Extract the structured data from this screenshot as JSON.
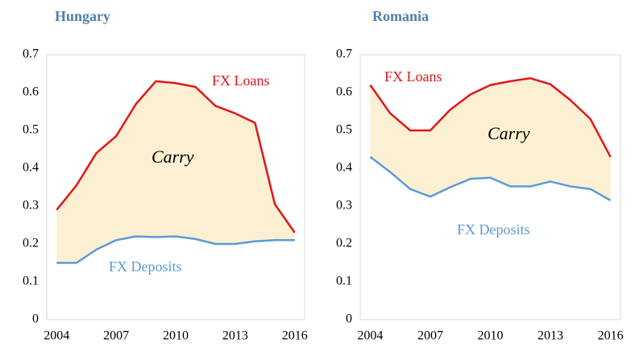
{
  "chart_data": [
    {
      "type": "line",
      "title": "Hungary",
      "x": [
        2004,
        2005,
        2006,
        2007,
        2008,
        2009,
        2010,
        2011,
        2012,
        2013,
        2014,
        2015,
        2016
      ],
      "series": [
        {
          "name": "FX Loans",
          "color": "#e3151a",
          "values": [
            0.29,
            0.355,
            0.44,
            0.485,
            0.57,
            0.63,
            0.625,
            0.615,
            0.565,
            0.545,
            0.52,
            0.305,
            0.23
          ]
        },
        {
          "name": "FX Deposits",
          "color": "#5b9bd5",
          "values": [
            0.15,
            0.15,
            0.185,
            0.21,
            0.22,
            0.218,
            0.22,
            0.213,
            0.2,
            0.2,
            0.207,
            0.21,
            0.21
          ]
        }
      ],
      "annotation": "Carry",
      "fill_color": "#fdf0d2",
      "xlim": [
        2003.5,
        2016.5
      ],
      "xticks": [
        2004,
        2007,
        2010,
        2013,
        2016
      ],
      "ylim": [
        0,
        0.7
      ],
      "yticks": [
        0,
        0.1,
        0.2,
        0.3,
        0.4,
        0.5,
        0.6,
        0.7
      ]
    },
    {
      "type": "line",
      "title": "Romania",
      "x": [
        2004,
        2005,
        2006,
        2007,
        2008,
        2009,
        2010,
        2011,
        2012,
        2013,
        2014,
        2015,
        2016
      ],
      "series": [
        {
          "name": "FX Loans",
          "color": "#e3151a",
          "values": [
            0.62,
            0.545,
            0.5,
            0.5,
            0.555,
            0.595,
            0.62,
            0.63,
            0.638,
            0.622,
            0.58,
            0.53,
            0.43
          ]
        },
        {
          "name": "FX Deposits",
          "color": "#5b9bd5",
          "values": [
            0.43,
            0.39,
            0.345,
            0.325,
            0.35,
            0.372,
            0.375,
            0.352,
            0.352,
            0.365,
            0.352,
            0.345,
            0.315
          ]
        }
      ],
      "annotation": "Carry",
      "fill_color": "#fdf0d2",
      "xlim": [
        2003.5,
        2016.5
      ],
      "xticks": [
        2004,
        2007,
        2010,
        2013,
        2016
      ],
      "ylim": [
        0,
        0.7
      ],
      "yticks": [
        0,
        0.1,
        0.2,
        0.3,
        0.4,
        0.5,
        0.6,
        0.7
      ]
    }
  ]
}
